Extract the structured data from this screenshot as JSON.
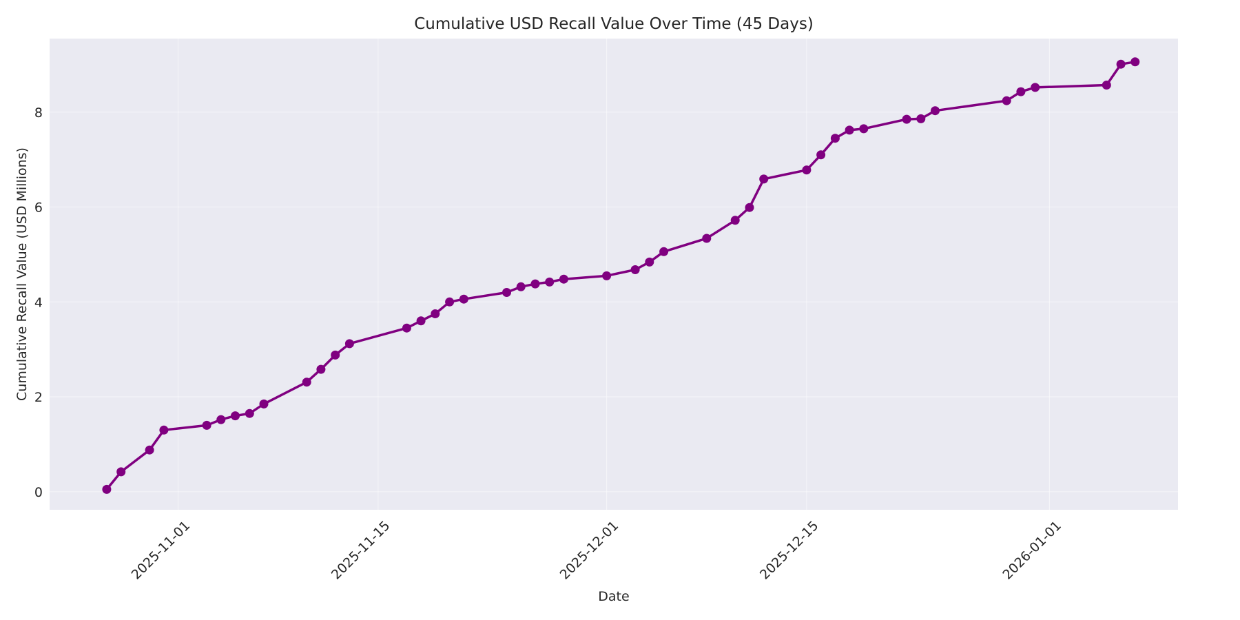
{
  "chart_data": {
    "type": "line",
    "title": "Cumulative USD Recall Value Over Time (45 Days)",
    "xlabel": "Date",
    "ylabel": "Cumulative Recall Value (USD Millions)",
    "xlim": [
      "2025-10-23",
      "2026-01-10"
    ],
    "ylim": [
      -0.38,
      9.55
    ],
    "x_ticks": [
      "2025-11-01",
      "2025-11-15",
      "2025-12-01",
      "2025-12-15",
      "2026-01-01"
    ],
    "y_ticks": [
      0,
      2,
      4,
      6,
      8
    ],
    "grid": true,
    "line_color": "#800080",
    "plot_background": "#eaeaf2",
    "series": [
      {
        "x": [
          "2025-10-27",
          "2025-10-28",
          "2025-10-30",
          "2025-10-31",
          "2025-11-03",
          "2025-11-04",
          "2025-11-05",
          "2025-11-06",
          "2025-11-07",
          "2025-11-10",
          "2025-11-11",
          "2025-11-12",
          "2025-11-13",
          "2025-11-17",
          "2025-11-18",
          "2025-11-19",
          "2025-11-20",
          "2025-11-21",
          "2025-11-24",
          "2025-11-25",
          "2025-11-26",
          "2025-11-27",
          "2025-11-28",
          "2025-12-01",
          "2025-12-03",
          "2025-12-04",
          "2025-12-05",
          "2025-12-08",
          "2025-12-10",
          "2025-12-11",
          "2025-12-12",
          "2025-12-15",
          "2025-12-16",
          "2025-12-17",
          "2025-12-18",
          "2025-12-19",
          "2025-12-22",
          "2025-12-23",
          "2025-12-24",
          "2025-12-29",
          "2025-12-30",
          "2025-12-31",
          "2026-01-05",
          "2026-01-06",
          "2026-01-07"
        ],
        "values": [
          0.05,
          0.42,
          0.88,
          1.3,
          1.4,
          1.52,
          1.6,
          1.65,
          1.85,
          2.31,
          2.58,
          2.88,
          3.12,
          3.45,
          3.6,
          3.75,
          4.0,
          4.06,
          4.2,
          4.32,
          4.38,
          4.42,
          4.48,
          4.55,
          4.68,
          4.84,
          5.06,
          5.34,
          5.72,
          5.99,
          6.59,
          6.78,
          7.1,
          7.45,
          7.62,
          7.65,
          7.85,
          7.86,
          8.03,
          8.24,
          8.43,
          8.52,
          8.57,
          9.01,
          9.06
        ]
      }
    ]
  }
}
